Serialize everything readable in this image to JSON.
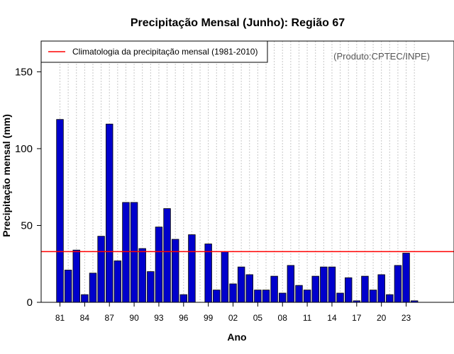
{
  "chart_data": {
    "type": "bar",
    "title": "Precipitação Mensal (Junho): Região 67",
    "xlabel": "Ano",
    "ylabel": "Precipitação mensal (mm)",
    "source": "(Produto:CPTEC/INPE)",
    "ylim": [
      0,
      170
    ],
    "yticks": [
      0,
      50,
      100,
      150
    ],
    "years": [
      1981,
      1982,
      1983,
      1984,
      1985,
      1986,
      1987,
      1988,
      1989,
      1990,
      1991,
      1992,
      1993,
      1994,
      1995,
      1996,
      1997,
      1998,
      1999,
      2000,
      2001,
      2002,
      2003,
      2004,
      2005,
      2006,
      2007,
      2008,
      2009,
      2010,
      2011,
      2012,
      2013,
      2014,
      2015,
      2016,
      2017,
      2018,
      2019,
      2020,
      2021,
      2022,
      2023,
      2024
    ],
    "values": [
      119,
      21,
      34,
      5,
      19,
      43,
      116,
      27,
      65,
      65,
      35,
      20,
      49,
      61,
      41,
      5,
      44,
      0,
      38,
      8,
      33,
      12,
      23,
      18,
      8,
      8,
      17,
      6,
      24,
      11,
      8,
      17,
      23,
      23,
      6,
      16,
      1,
      17,
      8,
      18,
      5,
      24,
      32,
      1
    ],
    "tick_labels": [
      "81",
      "84",
      "87",
      "90",
      "93",
      "96",
      "99",
      "02",
      "05",
      "08",
      "11",
      "14",
      "17",
      "20",
      "23"
    ],
    "grid": "dotted vertical per year",
    "climatology": {
      "label": "Climatologia da precipitação mensal (1981-2010)",
      "value": 33,
      "color": "#ff0000"
    },
    "bar_color": "#0000cc",
    "legend_position": "top-left"
  }
}
